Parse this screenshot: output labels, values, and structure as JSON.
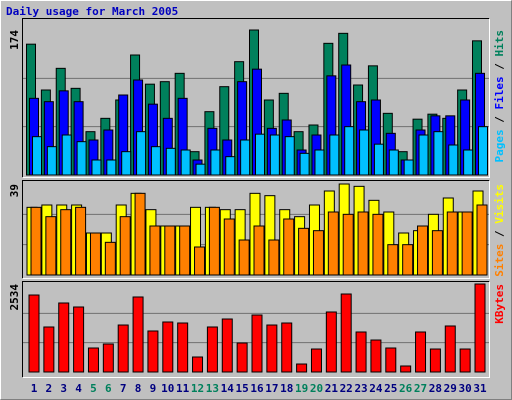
{
  "title": "Daily usage for March 2005",
  "separator": " / ",
  "chart_data": [
    {
      "type": "bar",
      "series": [
        {
          "name": "Pages",
          "color": "#00c0ff",
          "values": [
            46,
            34,
            48,
            40,
            18,
            18,
            28,
            52,
            34,
            32,
            30,
            13,
            30,
            22,
            42,
            49,
            48,
            46,
            26,
            30,
            48,
            58,
            54,
            37,
            30,
            18,
            48,
            52,
            36,
            30,
            58
          ]
        },
        {
          "name": "Files",
          "color": "#0000ff",
          "values": [
            92,
            88,
            101,
            88,
            42,
            54,
            96,
            114,
            85,
            68,
            92,
            18,
            56,
            42,
            112,
            127,
            56,
            66,
            30,
            48,
            119,
            132,
            88,
            90,
            50,
            18,
            54,
            71,
            71,
            90,
            122
          ]
        },
        {
          "name": "Hits",
          "color": "#00805c",
          "values": [
            157,
            102,
            128,
            104,
            52,
            68,
            90,
            144,
            109,
            112,
            122,
            28,
            76,
            106,
            136,
            174,
            90,
            98,
            52,
            60,
            158,
            170,
            108,
            131,
            74,
            28,
            67,
            73,
            68,
            102,
            161
          ]
        }
      ],
      "ylim": [
        0,
        174
      ],
      "yticks": [
        174
      ],
      "grid": true
    },
    {
      "type": "bar",
      "series": [
        {
          "name": "Sites",
          "color": "#ff8000",
          "values": [
            29,
            25,
            28,
            29,
            18,
            14,
            25,
            35,
            21,
            21,
            21,
            12,
            29,
            24,
            15,
            21,
            15,
            24,
            20,
            19,
            27,
            26,
            27,
            26,
            13,
            13,
            21,
            19,
            27,
            27,
            30
          ]
        },
        {
          "name": "Visits",
          "color": "#ffff00",
          "values": [
            29,
            30,
            30,
            30,
            18,
            18,
            30,
            35,
            28,
            21,
            21,
            29,
            29,
            28,
            28,
            35,
            34,
            28,
            25,
            30,
            36,
            39,
            38,
            32,
            27,
            18,
            19,
            26,
            33,
            27,
            36
          ]
        }
      ],
      "ylim": [
        0,
        39
      ],
      "yticks": [
        39
      ],
      "grid": true
    },
    {
      "type": "bar",
      "categories": [
        1,
        2,
        3,
        4,
        5,
        6,
        7,
        8,
        9,
        10,
        11,
        12,
        13,
        14,
        15,
        16,
        17,
        18,
        19,
        20,
        21,
        22,
        23,
        24,
        25,
        26,
        27,
        28,
        29,
        30,
        31
      ],
      "category_colors": [
        "#000080",
        "#000080",
        "#000080",
        "#000080",
        "#00805c",
        "#00805c",
        "#000080",
        "#000080",
        "#000080",
        "#000080",
        "#000080",
        "#00805c",
        "#00805c",
        "#000080",
        "#000080",
        "#000080",
        "#000080",
        "#000080",
        "#00805c",
        "#00805c",
        "#000080",
        "#000080",
        "#000080",
        "#000080",
        "#000080",
        "#00805c",
        "#00805c",
        "#000080",
        "#000080",
        "#000080",
        "#000080"
      ],
      "series": [
        {
          "name": "KBytes",
          "color": "#ff0000",
          "values": [
            2217,
            1296,
            1987,
            1872,
            691,
            806,
            1353,
            2160,
            1181,
            1440,
            1411,
            432,
            1296,
            1526,
            835,
            1641,
            1353,
            1411,
            230,
            662,
            1728,
            2246,
            1152,
            921,
            691,
            173,
            1152,
            662,
            1325,
            662,
            2534
          ]
        }
      ],
      "ylim": [
        0,
        2534
      ],
      "yticks": [
        2534
      ],
      "grid": true
    }
  ]
}
